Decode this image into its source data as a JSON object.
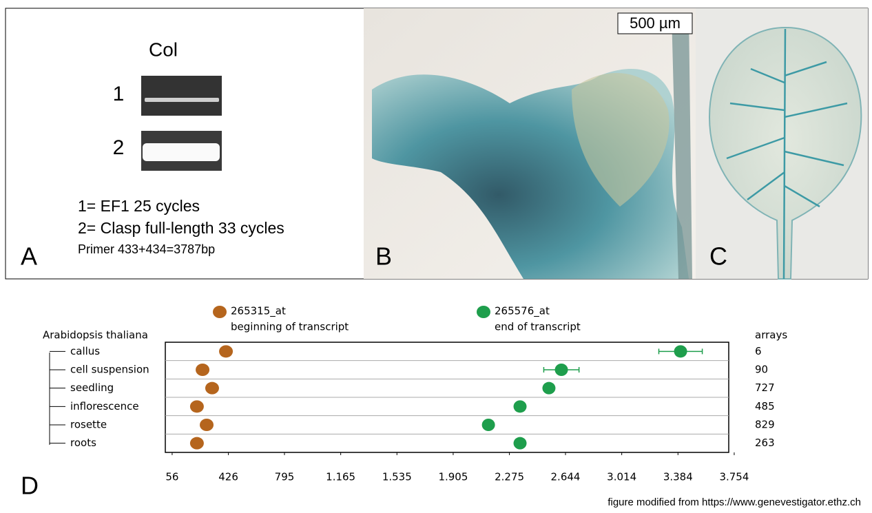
{
  "panel_a": {
    "label": "A",
    "lane_header": "Col",
    "lanes": [
      "1",
      "2"
    ],
    "legend": [
      "1= EF1 25 cycles",
      "2= Clasp full-length 33 cycles"
    ],
    "primer": "Primer 433+434=3787bp"
  },
  "panel_b": {
    "label": "B",
    "scale_bar": "500 µm"
  },
  "panel_c": {
    "label": "C"
  },
  "panel_d": {
    "label": "D",
    "credit": "figure modified from https://www.genevestigator.ethz.ch"
  },
  "chart_data": {
    "type": "scatter",
    "organism": "Arabidopsis thaliana",
    "count_header": "arrays",
    "categories": [
      "callus",
      "cell suspension",
      "seedling",
      "inflorescence",
      "rosette",
      "roots"
    ],
    "counts": [
      6,
      90,
      727,
      485,
      829,
      263
    ],
    "series": [
      {
        "name": "265315_at",
        "description": "beginning of transcript",
        "color": "#b5651d",
        "values": [
          410,
          256,
          319,
          219,
          283,
          219
        ]
      },
      {
        "name": "265576_at",
        "description": "end of transcript",
        "color": "#1e9e4c",
        "values": [
          3401,
          2617,
          2535,
          2345,
          2137,
          2345
        ],
        "errors": [
          143,
          116,
          null,
          null,
          null,
          null
        ]
      }
    ],
    "xlim": [
      11,
      3718
    ],
    "xticks": [
      56,
      {
        "value": 426,
        "label": "426"
      },
      {
        "value": 795,
        "label": "795"
      },
      {
        "value": 1165,
        "label": "1.165"
      },
      {
        "value": 1535,
        "label": "1.535"
      },
      {
        "value": 1905,
        "label": "1.905"
      },
      {
        "value": 2275,
        "label": "2.275"
      },
      {
        "value": 2644,
        "label": "2.644"
      },
      {
        "value": 3014,
        "label": "3.014"
      },
      {
        "value": 3384,
        "label": "3.384"
      },
      {
        "value": 3754,
        "label": "3.754"
      }
    ]
  }
}
